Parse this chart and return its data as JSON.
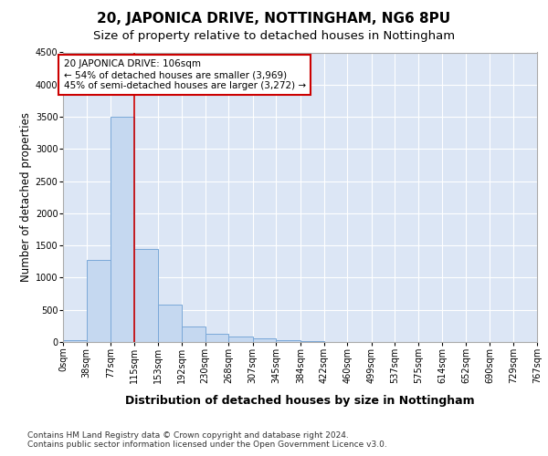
{
  "title": "20, JAPONICA DRIVE, NOTTINGHAM, NG6 8PU",
  "subtitle": "Size of property relative to detached houses in Nottingham",
  "xlabel": "Distribution of detached houses by size in Nottingham",
  "ylabel": "Number of detached properties",
  "bg_color": "#dce6f5",
  "bar_color": "#c5d8f0",
  "bar_edge_color": "#7aA8d8",
  "bin_edges": [
    0,
    38,
    77,
    115,
    153,
    192,
    230,
    268,
    307,
    345,
    384,
    422,
    460,
    499,
    537,
    575,
    614,
    652,
    690,
    729,
    767
  ],
  "bar_heights": [
    30,
    1270,
    3500,
    1450,
    580,
    240,
    130,
    90,
    55,
    25,
    10,
    5,
    2,
    0,
    0,
    0,
    0,
    0,
    0,
    0
  ],
  "red_line_x": 115,
  "ylim": [
    0,
    4500
  ],
  "yticks": [
    0,
    500,
    1000,
    1500,
    2000,
    2500,
    3000,
    3500,
    4000,
    4500
  ],
  "annotation_text": "20 JAPONICA DRIVE: 106sqm\n← 54% of detached houses are smaller (3,969)\n45% of semi-detached houses are larger (3,272) →",
  "annotation_box_color": "#ffffff",
  "annotation_border_color": "#cc0000",
  "footer_text": "Contains HM Land Registry data © Crown copyright and database right 2024.\nContains public sector information licensed under the Open Government Licence v3.0.",
  "grid_color": "#ffffff",
  "title_fontsize": 11,
  "subtitle_fontsize": 9.5,
  "axis_label_fontsize": 8.5,
  "tick_fontsize": 7,
  "annotation_fontsize": 7.5,
  "footer_fontsize": 6.5
}
